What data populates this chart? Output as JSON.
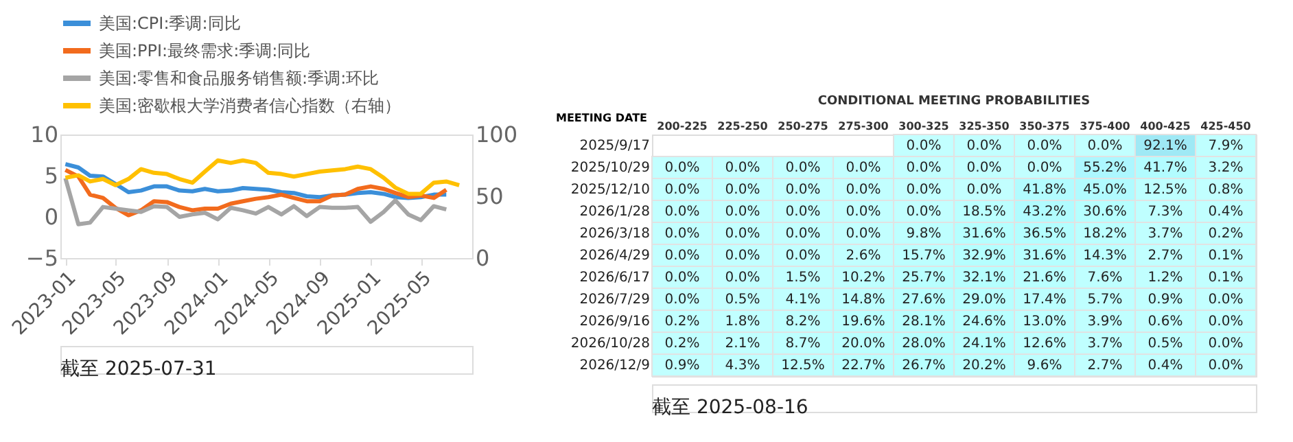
{
  "chart_data": [
    {
      "type": "line",
      "x": [
        "2023-01",
        "2023-02",
        "2023-03",
        "2023-04",
        "2023-05",
        "2023-06",
        "2023-07",
        "2023-08",
        "2023-09",
        "2023-10",
        "2023-11",
        "2023-12",
        "2024-01",
        "2024-02",
        "2024-03",
        "2024-04",
        "2024-05",
        "2024-06",
        "2024-07",
        "2024-08",
        "2024-09",
        "2024-10",
        "2024-11",
        "2024-12",
        "2025-01",
        "2025-02",
        "2025-03",
        "2025-04",
        "2025-05",
        "2025-06",
        "2025-07"
      ],
      "series": [
        {
          "name": "美国:CPI:季调:同比",
          "color": "#3b8fd9",
          "values": [
            6.4,
            6.0,
            5.0,
            4.9,
            4.0,
            3.0,
            3.2,
            3.7,
            3.7,
            3.2,
            3.1,
            3.4,
            3.1,
            3.2,
            3.5,
            3.4,
            3.3,
            3.0,
            2.9,
            2.5,
            2.4,
            2.6,
            2.7,
            2.9,
            3.0,
            2.8,
            2.4,
            2.3,
            2.4,
            2.7,
            2.7
          ]
        },
        {
          "name": "美国:PPI:最终需求:季调:同比",
          "color": "#f26b1d",
          "values": [
            5.7,
            4.9,
            2.7,
            2.3,
            1.1,
            0.2,
            0.8,
            1.9,
            1.8,
            1.2,
            0.8,
            1.0,
            1.0,
            1.6,
            1.9,
            2.2,
            2.4,
            2.7,
            2.3,
            1.9,
            1.9,
            2.6,
            2.7,
            3.4,
            3.7,
            3.4,
            2.9,
            2.4,
            2.6,
            2.3,
            3.3
          ]
        },
        {
          "name": "美国:零售和食品服务销售额:季调:环比",
          "color": "#a5a5a5",
          "values": [
            4.7,
            -0.9,
            -0.7,
            1.2,
            1.0,
            0.8,
            0.6,
            1.3,
            1.2,
            0.0,
            0.3,
            0.5,
            -0.3,
            1.1,
            0.8,
            0.4,
            1.2,
            0.3,
            1.3,
            0.1,
            1.2,
            1.1,
            1.1,
            1.2,
            -0.6,
            0.6,
            2.0,
            0.3,
            -0.4,
            1.3,
            0.9
          ]
        },
        {
          "name": "美国:密歇根大学消费者信心指数（右轴）",
          "color": "#ffc000",
          "axis": "y2",
          "x": [
            "2023-01",
            "2023-02",
            "2023-03",
            "2023-04",
            "2023-05",
            "2023-06",
            "2023-07",
            "2023-08",
            "2023-09",
            "2023-10",
            "2023-11",
            "2023-12",
            "2024-01",
            "2024-02",
            "2024-03",
            "2024-04",
            "2024-05",
            "2024-06",
            "2024-07",
            "2024-08",
            "2024-09",
            "2024-10",
            "2024-11",
            "2024-12",
            "2025-01",
            "2025-02",
            "2025-03",
            "2025-04",
            "2025-05",
            "2025-06",
            "2025-07",
            "2025-08"
          ],
          "values": [
            65,
            67,
            62,
            64,
            59,
            64,
            72,
            69,
            68,
            64,
            61,
            70,
            79,
            77,
            79,
            77,
            69,
            68,
            66,
            68,
            70,
            71,
            72,
            74,
            72,
            65,
            57,
            52,
            52,
            61,
            62,
            59
          ]
        }
      ],
      "xlim": [
        "2022-12-20",
        "2025-09-01"
      ],
      "xticks": [
        "2023-01",
        "2023-05",
        "2023-09",
        "2024-01",
        "2024-05",
        "2024-09",
        "2025-01",
        "2025-05"
      ],
      "ylim": [
        -5,
        10
      ],
      "yticks": [
        -5,
        0,
        5,
        10
      ],
      "y2lim": [
        0,
        100
      ],
      "y2ticks": [
        0,
        50,
        100
      ],
      "grid": false,
      "legend": "top",
      "line_style": "solid",
      "marker": "none",
      "annotations": [
        "截至 2025-07-31"
      ]
    },
    {
      "type": "heatmap",
      "title": "CONDITIONAL MEETING PROBABILITIES",
      "ylabel": "MEETING DATE",
      "categories": [
        "200-225",
        "225-250",
        "250-275",
        "275-300",
        "300-325",
        "325-350",
        "350-375",
        "375-400",
        "400-425",
        "425-450"
      ],
      "y_categories": [
        "2025/9/17",
        "2025/10/29",
        "2025/12/10",
        "2026/1/28",
        "2026/3/18",
        "2026/4/29",
        "2026/6/17",
        "2026/7/29",
        "2026/9/16",
        "2026/10/28",
        "2026/12/9"
      ],
      "cells": [
        [
          null,
          null,
          null,
          null,
          0.0,
          0.0,
          0.0,
          0.0,
          92.1,
          7.9
        ],
        [
          0.0,
          0.0,
          0.0,
          0.0,
          0.0,
          0.0,
          0.0,
          55.2,
          41.7,
          3.2
        ],
        [
          0.0,
          0.0,
          0.0,
          0.0,
          0.0,
          0.0,
          41.8,
          45.0,
          12.5,
          0.8
        ],
        [
          0.0,
          0.0,
          0.0,
          0.0,
          0.0,
          18.5,
          43.2,
          30.6,
          7.3,
          0.4
        ],
        [
          0.0,
          0.0,
          0.0,
          0.0,
          9.8,
          31.6,
          36.5,
          18.2,
          3.7,
          0.2
        ],
        [
          0.0,
          0.0,
          0.0,
          2.6,
          15.7,
          32.9,
          31.6,
          14.3,
          2.7,
          0.1
        ],
        [
          0.0,
          0.0,
          1.5,
          10.2,
          25.7,
          32.1,
          21.6,
          7.6,
          1.2,
          0.1
        ],
        [
          0.0,
          0.5,
          4.1,
          14.8,
          27.6,
          29.0,
          17.4,
          5.7,
          0.9,
          0.0
        ],
        [
          0.2,
          1.8,
          8.2,
          19.6,
          28.1,
          24.6,
          13.0,
          3.9,
          0.6,
          0.0
        ],
        [
          0.2,
          2.1,
          8.7,
          20.0,
          28.0,
          24.1,
          12.6,
          3.7,
          0.5,
          0.0
        ],
        [
          0.9,
          4.3,
          12.5,
          22.7,
          26.7,
          20.2,
          9.6,
          2.7,
          0.4,
          0.0
        ]
      ],
      "cell_labels": [
        [
          null,
          null,
          null,
          null,
          "0.0%",
          "0.0%",
          "0.0%",
          "0.0%",
          "92.1%",
          "7.9%"
        ],
        [
          "0.0%",
          "0.0%",
          "0.0%",
          "0.0%",
          "0.0%",
          "0.0%",
          "0.0%",
          "55.2%",
          "41.7%",
          "3.2%"
        ],
        [
          "0.0%",
          "0.0%",
          "0.0%",
          "0.0%",
          "0.0%",
          "0.0%",
          "41.8%",
          "45.0%",
          "12.5%",
          "0.8%"
        ],
        [
          "0.0%",
          "0.0%",
          "0.0%",
          "0.0%",
          "0.0%",
          "18.5%",
          "43.2%",
          "30.6%",
          "7.3%",
          "0.4%"
        ],
        [
          "0.0%",
          "0.0%",
          "0.0%",
          "0.0%",
          "9.8%",
          "31.6%",
          "36.5%",
          "18.2%",
          "3.7%",
          "0.2%"
        ],
        [
          "0.0%",
          "0.0%",
          "0.0%",
          "2.6%",
          "15.7%",
          "32.9%",
          "31.6%",
          "14.3%",
          "2.7%",
          "0.1%"
        ],
        [
          "0.0%",
          "0.0%",
          "1.5%",
          "10.2%",
          "25.7%",
          "32.1%",
          "21.6%",
          "7.6%",
          "1.2%",
          "0.1%"
        ],
        [
          "0.0%",
          "0.5%",
          "4.1%",
          "14.8%",
          "27.6%",
          "29.0%",
          "17.4%",
          "5.7%",
          "0.9%",
          "0.0%"
        ],
        [
          "0.2%",
          "1.8%",
          "8.2%",
          "19.6%",
          "28.1%",
          "24.6%",
          "13.0%",
          "3.9%",
          "0.6%",
          "0.0%"
        ],
        [
          "0.2%",
          "2.1%",
          "8.7%",
          "20.0%",
          "28.0%",
          "24.1%",
          "12.6%",
          "3.7%",
          "0.5%",
          "0.0%"
        ],
        [
          "0.9%",
          "4.3%",
          "12.5%",
          "22.7%",
          "26.7%",
          "20.2%",
          "9.6%",
          "2.7%",
          "0.4%",
          "0.0%"
        ]
      ],
      "annotations": [
        "截至 2025-08-16"
      ]
    }
  ]
}
